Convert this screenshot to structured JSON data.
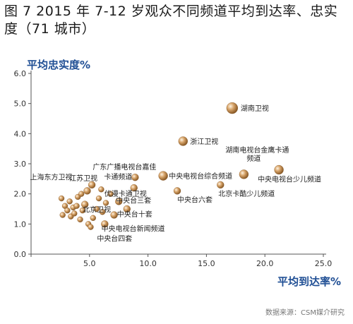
{
  "header": {
    "title": "图 7   2015 年 7-12 岁观众不同频道平均到达率、忠实度（71 城市）"
  },
  "source_note": "数据来源：CSM媒介研究",
  "chart_data": {
    "type": "scatter",
    "title": "图 7   2015 年 7-12 岁观众不同频道平均到达率、忠实度（71 城市）",
    "xlabel": "平均到达率%",
    "ylabel": "平均忠实度%",
    "xlim": [
      0,
      25
    ],
    "ylim": [
      0,
      6
    ],
    "xticks": [
      "0.0",
      "5.0",
      "10.0",
      "15.0",
      "20.0",
      "25.0"
    ],
    "yticks": [
      "0.0",
      "1.0",
      "2.0",
      "3.0",
      "4.0",
      "5.0",
      "6.0"
    ],
    "grid": false,
    "colors": {
      "point": "#b8864a",
      "axis_label": "#1f4e94"
    },
    "points": [
      {
        "label": "湖南卫视",
        "x": 17.2,
        "y": 4.85
      },
      {
        "label": "浙江卫视",
        "x": 13.0,
        "y": 3.75
      },
      {
        "label": "湖南电视台金鹰卡通频道",
        "x": 18.2,
        "y": 2.65
      },
      {
        "label": "中央电视台少儿频道",
        "x": 21.2,
        "y": 2.8
      },
      {
        "label": "北京卡酷少儿频道",
        "x": 16.2,
        "y": 2.3
      },
      {
        "label": "中央电视台综合频道",
        "x": 11.3,
        "y": 2.6
      },
      {
        "label": "中央台六套",
        "x": 12.5,
        "y": 2.1
      },
      {
        "label": "广东广播电视台嘉佳卡通频道",
        "x": 8.9,
        "y": 2.55
      },
      {
        "label": "优漫卡通卫视",
        "x": 8.8,
        "y": 2.2
      },
      {
        "label": "江苏卫视",
        "x": 5.2,
        "y": 2.3
      },
      {
        "label": "上海东方卫视",
        "x": 4.8,
        "y": 2.1
      },
      {
        "label": "北京卫视",
        "x": 4.6,
        "y": 1.65
      },
      {
        "label": "中央台三套",
        "x": 7.5,
        "y": 1.75
      },
      {
        "label": "中央台十套",
        "x": 8.2,
        "y": 1.5
      },
      {
        "label": "中央电视台新闻频道",
        "x": 7.1,
        "y": 1.3
      },
      {
        "label": "中央台四套",
        "x": 6.3,
        "y": 1.0
      },
      {
        "label": "",
        "x": 2.6,
        "y": 1.85
      },
      {
        "label": "",
        "x": 2.9,
        "y": 1.6
      },
      {
        "label": "",
        "x": 3.1,
        "y": 1.45
      },
      {
        "label": "",
        "x": 3.3,
        "y": 1.75
      },
      {
        "label": "",
        "x": 3.4,
        "y": 1.25
      },
      {
        "label": "",
        "x": 3.6,
        "y": 1.55
      },
      {
        "label": "",
        "x": 3.7,
        "y": 1.35
      },
      {
        "label": "",
        "x": 3.9,
        "y": 1.6
      },
      {
        "label": "",
        "x": 4.0,
        "y": 1.9
      },
      {
        "label": "",
        "x": 4.2,
        "y": 1.15
      },
      {
        "label": "",
        "x": 4.4,
        "y": 1.45
      },
      {
        "label": "",
        "x": 4.3,
        "y": 2.0
      },
      {
        "label": "",
        "x": 4.9,
        "y": 1.0
      },
      {
        "label": "",
        "x": 5.3,
        "y": 1.2
      },
      {
        "label": "",
        "x": 5.6,
        "y": 1.5
      },
      {
        "label": "",
        "x": 5.8,
        "y": 1.85
      },
      {
        "label": "",
        "x": 6.1,
        "y": 1.4
      },
      {
        "label": "",
        "x": 6.4,
        "y": 1.7
      },
      {
        "label": "",
        "x": 6.8,
        "y": 2.0
      },
      {
        "label": "",
        "x": 6.0,
        "y": 2.15
      },
      {
        "label": "",
        "x": 5.1,
        "y": 0.9
      },
      {
        "label": "",
        "x": 2.7,
        "y": 1.3
      }
    ]
  }
}
